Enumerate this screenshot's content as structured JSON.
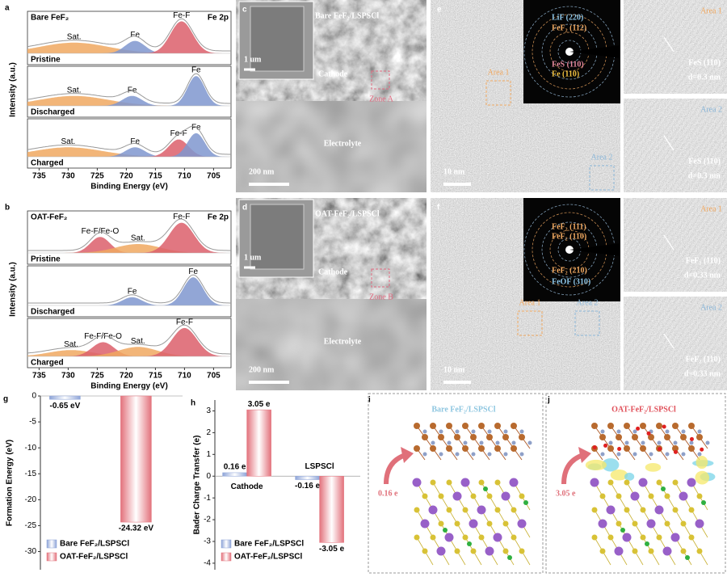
{
  "chart_data": [
    {
      "type": "spectrum",
      "panel": "a",
      "sample": "Bare FeF₂",
      "corner_label": "Fe 2p",
      "xlabel": "Binding Energy (eV)",
      "ylabel": "Intensity (a.u.)",
      "xlim": [
        737,
        702
      ],
      "xticks": [
        735,
        730,
        725,
        720,
        715,
        710,
        705
      ],
      "spectra": [
        {
          "name": "Pristine",
          "peaks": [
            {
              "label": "Sat.",
              "center": 729,
              "fwhm": 14,
              "intensity": 0.3,
              "color": "#f0a860"
            },
            {
              "label": "Fe",
              "center": 718.5,
              "fwhm": 4,
              "intensity": 0.35,
              "color": "#7f97cf"
            },
            {
              "label": "Fe-F",
              "center": 710.5,
              "fwhm": 4.5,
              "intensity": 0.9,
              "color": "#dc5f6b"
            }
          ]
        },
        {
          "name": "Discharged",
          "peaks": [
            {
              "label": "Sat.",
              "center": 729,
              "fwhm": 14,
              "intensity": 0.3,
              "color": "#f0a860"
            },
            {
              "label": "Fe",
              "center": 719,
              "fwhm": 4,
              "intensity": 0.3,
              "color": "#7f97cf"
            },
            {
              "label": "Fe",
              "center": 708,
              "fwhm": 3.5,
              "intensity": 0.9,
              "color": "#7f97cf"
            }
          ]
        },
        {
          "name": "Charged",
          "peaks": [
            {
              "label": "Sat.",
              "center": 730,
              "fwhm": 14,
              "intensity": 0.3,
              "color": "#f0a860"
            },
            {
              "label": "Fe",
              "center": 718.5,
              "fwhm": 4,
              "intensity": 0.3,
              "color": "#7f97cf"
            },
            {
              "label": "Fe-F",
              "center": 711,
              "fwhm": 4,
              "intensity": 0.55,
              "color": "#dc5f6b"
            },
            {
              "label": "Fe",
              "center": 708,
              "fwhm": 3.5,
              "intensity": 0.75,
              "color": "#7f97cf"
            }
          ]
        }
      ]
    },
    {
      "type": "spectrum",
      "panel": "b",
      "sample": "OAT-FeF₂",
      "corner_label": "Fe 2p",
      "xlabel": "Binding Energy (eV)",
      "ylabel": "Intensity (a.u.)",
      "xlim": [
        737,
        702
      ],
      "xticks": [
        735,
        730,
        725,
        720,
        715,
        710,
        705
      ],
      "spectra": [
        {
          "name": "Pristine",
          "peaks": [
            {
              "label": "Fe-F/Fe-O",
              "center": 724.5,
              "fwhm": 4,
              "intensity": 0.45,
              "color": "#dc5f6b"
            },
            {
              "label": "Sat.",
              "center": 718,
              "fwhm": 9,
              "intensity": 0.25,
              "color": "#f0a860"
            },
            {
              "label": "Fe-F",
              "center": 710.5,
              "fwhm": 5,
              "intensity": 0.85,
              "color": "#dc5f6b"
            }
          ]
        },
        {
          "name": "Discharged",
          "peaks": [
            {
              "label": "Fe",
              "center": 719,
              "fwhm": 4,
              "intensity": 0.25,
              "color": "#7f97cf"
            },
            {
              "label": "Fe",
              "center": 708.5,
              "fwhm": 4,
              "intensity": 0.85,
              "color": "#7f97cf"
            }
          ]
        },
        {
          "name": "Charged",
          "peaks": [
            {
              "label": "Sat.",
              "center": 729.5,
              "fwhm": 9,
              "intensity": 0.2,
              "color": "#f0a860"
            },
            {
              "label": "Fe-F/Fe-O",
              "center": 724,
              "fwhm": 4.5,
              "intensity": 0.45,
              "color": "#dc5f6b"
            },
            {
              "label": "Sat.",
              "center": 718,
              "fwhm": 8,
              "intensity": 0.3,
              "color": "#f0a860"
            },
            {
              "label": "Fe-F",
              "center": 710,
              "fwhm": 5,
              "intensity": 0.9,
              "color": "#dc5f6b"
            }
          ]
        }
      ]
    },
    {
      "type": "bar",
      "panel": "g",
      "ylabel": "Formation Energy (eV)",
      "ylim": [
        -33.5,
        0
      ],
      "yticks": [
        0,
        -5,
        -10,
        -15,
        -20,
        -25,
        -30
      ],
      "legend": "lower left",
      "series": [
        {
          "name": "Bare FeF₂/LSPSCl",
          "color": "#8ea4d8",
          "values": [
            -0.65
          ],
          "value_labels": [
            "-0.65 eV"
          ]
        },
        {
          "name": "OAT-FeF₂/LSPSCl",
          "color": "#e3727c",
          "values": [
            -24.32
          ],
          "value_labels": [
            "-24.32 eV"
          ]
        }
      ]
    },
    {
      "type": "bar",
      "panel": "h",
      "ylabel": "Bader Charge Transfer (e)",
      "categories": [
        "Cathode",
        "LSPSCl"
      ],
      "ylim": [
        -4.3,
        3.5
      ],
      "yticks": [
        3,
        2,
        1,
        0,
        -1,
        -2,
        -3,
        -4
      ],
      "legend": "lower left",
      "series": [
        {
          "name": "Bare FeF₂/LSPSCl",
          "color": "#8ea4d8",
          "values": [
            0.16,
            -0.16
          ],
          "value_labels": [
            "0.16 e",
            "-0.16 e"
          ]
        },
        {
          "name": "OAT-FeF₂/LSPSCl",
          "color": "#e3727c",
          "values": [
            3.05,
            -3.05
          ],
          "value_labels": [
            "3.05 e",
            "-3.05 e"
          ]
        }
      ]
    }
  ],
  "micrographs": [
    {
      "panel": "c",
      "title": "Bare FeF₂/LSPSCl",
      "inset_scale": "1 um",
      "top_label": "Cathode",
      "bottom_label": "Electrolyte",
      "zone": "Zone A",
      "scale_bar": "200 nm"
    },
    {
      "panel": "d",
      "title": "OAT-FeF₂/LSPSCl",
      "inset_scale": "1 um",
      "top_label": "Cathode",
      "bottom_label": "Electrolyte",
      "zone": "Zone B",
      "scale_bar": "200 nm"
    }
  ],
  "hrtem": [
    {
      "panel": "e",
      "scale_bar": "10 nm",
      "saed": [
        "LiF (220)",
        "FeF₂ (112)",
        "FeS (110)",
        "Fe (110)"
      ],
      "areas": [
        "Area 1",
        "Area 2"
      ]
    },
    {
      "panel": "f",
      "scale_bar": "10 nm",
      "saed": [
        "FeF₂ (111)",
        "FeF₂ (110)",
        "FeF₂ (210)",
        "FeOF (310)"
      ],
      "areas": [
        "Area 1",
        "Area 2"
      ]
    }
  ],
  "lattice_images": [
    {
      "area": "Area 1",
      "plane": "FeS (110)",
      "spacing": "d=0.3 nm"
    },
    {
      "area": "Area 2",
      "plane": "FeS (110)",
      "spacing": "d=0.3 nm"
    },
    {
      "area": "Area 1",
      "plane": "FeF₂ (110)",
      "spacing": "d=0.33 nm"
    },
    {
      "area": "Area 2",
      "plane": "FeF₂ (110)",
      "spacing": "d=0.33 nm"
    }
  ],
  "structures": [
    {
      "panel": "i",
      "title": "Bare FeF₂/LSPSCl",
      "charge": "0.16 e",
      "title_color": "#8ec6e0"
    },
    {
      "panel": "j",
      "title": "OAT-FeF₂/LSPSCl",
      "charge": "3.05 e",
      "title_color": "#e0505a"
    }
  ]
}
